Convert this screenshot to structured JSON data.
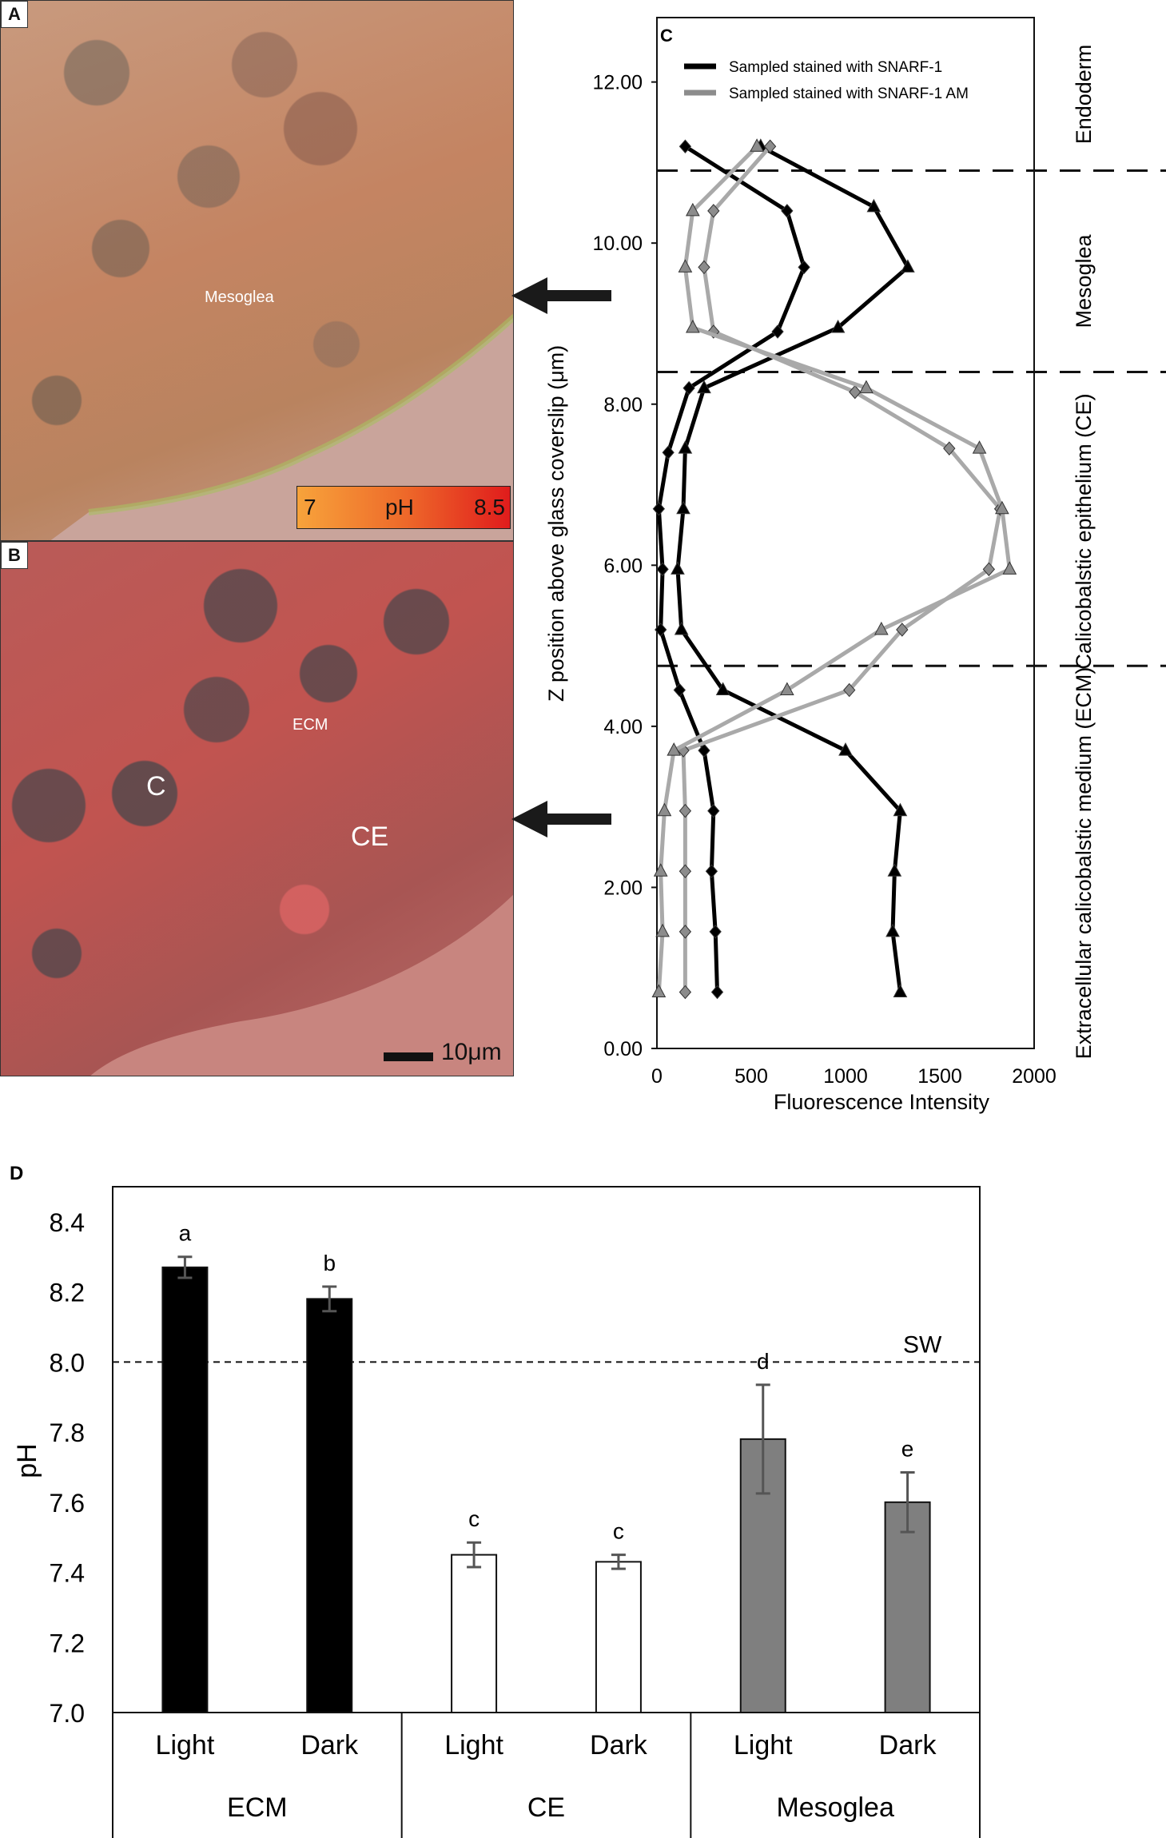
{
  "panels": {
    "a": {
      "letter": "A",
      "label": "Mesoglea"
    },
    "b": {
      "letter": "B",
      "label_ecm": "ECM",
      "label_c": "C",
      "label_ce": "CE",
      "scale_label": "10μm"
    },
    "colorbar": {
      "min": "7",
      "mid": "pH",
      "max": "8.5"
    }
  },
  "colors": {
    "black_series": "#000000",
    "gray_series": "#a9a9a9",
    "mesoglea_bar": "#7f7f7f",
    "ce_bar": "#ffffff",
    "ecm_bar": "#000000"
  },
  "chart_data": [
    {
      "panel": "C",
      "type": "line",
      "orientation": "profile",
      "xlabel": "Fluorescence Intensity",
      "ylabel": "Z position above glass coverslip (μm)",
      "xlim": [
        0,
        2000
      ],
      "ylim": [
        0,
        12.8
      ],
      "xticks": [
        "0",
        "500",
        "1000",
        "1500",
        "2000"
      ],
      "yticks": [
        "0.00",
        "2.00",
        "4.00",
        "6.00",
        "8.00",
        "10.00",
        "12.00"
      ],
      "legend": [
        "Sampled stained with SNARF-1",
        "Sampled stained with SNARF-1 AM"
      ],
      "legend_position": "top-left",
      "boundaries": [
        10.9,
        8.4,
        4.75
      ],
      "regions": [
        "Endoderm",
        "Mesoglea",
        "Calicobalstic epithelium (CE)",
        "Extracellular calicobalstic medium (ECM)"
      ],
      "series": [
        {
          "name": "Sampled stained with SNARF-1",
          "color": "black",
          "marker": "diamond",
          "points": [
            [
              150,
              11.2
            ],
            [
              690,
              10.4
            ],
            [
              780,
              9.7
            ],
            [
              640,
              8.9
            ],
            [
              170,
              8.2
            ],
            [
              60,
              7.4
            ],
            [
              10,
              6.7
            ],
            [
              30,
              5.95
            ],
            [
              20,
              5.2
            ],
            [
              120,
              4.45
            ],
            [
              250,
              3.7
            ],
            [
              300,
              2.95
            ],
            [
              290,
              2.2
            ],
            [
              310,
              1.45
            ],
            [
              320,
              0.7
            ]
          ]
        },
        {
          "name": "Sampled stained with SNARF-1",
          "color": "black",
          "marker": "triangle",
          "points": [
            [
              550,
              11.2
            ],
            [
              1150,
              10.45
            ],
            [
              1330,
              9.7
            ],
            [
              960,
              8.95
            ],
            [
              250,
              8.2
            ],
            [
              150,
              7.45
            ],
            [
              140,
              6.7
            ],
            [
              110,
              5.95
            ],
            [
              130,
              5.2
            ],
            [
              350,
              4.45
            ],
            [
              1000,
              3.7
            ],
            [
              1290,
              2.95
            ],
            [
              1260,
              2.2
            ],
            [
              1250,
              1.45
            ],
            [
              1290,
              0.7
            ]
          ]
        },
        {
          "name": "Sampled stained with SNARF-1 AM",
          "color": "gray",
          "marker": "diamond",
          "points": [
            [
              600,
              11.2
            ],
            [
              300,
              10.4
            ],
            [
              250,
              9.7
            ],
            [
              300,
              8.9
            ],
            [
              1050,
              8.15
            ],
            [
              1550,
              7.45
            ],
            [
              1820,
              6.7
            ],
            [
              1760,
              5.95
            ],
            [
              1300,
              5.2
            ],
            [
              1020,
              4.45
            ],
            [
              140,
              3.7
            ],
            [
              150,
              2.95
            ],
            [
              150,
              2.2
            ],
            [
              150,
              1.45
            ],
            [
              150,
              0.7
            ]
          ]
        },
        {
          "name": "Sampled stained with SNARF-1 AM",
          "color": "gray",
          "marker": "triangle",
          "points": [
            [
              530,
              11.2
            ],
            [
              190,
              10.4
            ],
            [
              150,
              9.7
            ],
            [
              190,
              8.95
            ],
            [
              1110,
              8.2
            ],
            [
              1710,
              7.45
            ],
            [
              1830,
              6.7
            ],
            [
              1870,
              5.95
            ],
            [
              1190,
              5.2
            ],
            [
              690,
              4.45
            ],
            [
              90,
              3.7
            ],
            [
              40,
              2.95
            ],
            [
              20,
              2.2
            ],
            [
              30,
              1.45
            ],
            [
              10,
              0.7
            ]
          ]
        }
      ]
    },
    {
      "panel": "D",
      "type": "bar",
      "ylabel": "pH",
      "ylim": [
        7.0,
        8.5
      ],
      "yticks": [
        "7.0",
        "7.2",
        "7.4",
        "7.6",
        "7.8",
        "8.0",
        "8.2",
        "8.4"
      ],
      "reference_line": {
        "value": 8.0,
        "label": "SW"
      },
      "groups": [
        "ECM",
        "CE",
        "Mesoglea"
      ],
      "categories": [
        "Light",
        "Dark",
        "Light",
        "Dark",
        "Light",
        "Dark"
      ],
      "values": [
        8.27,
        8.18,
        7.45,
        7.43,
        7.78,
        7.6
      ],
      "errors": [
        0.03,
        0.035,
        0.035,
        0.02,
        0.155,
        0.085
      ],
      "letters": [
        "a",
        "b",
        "c",
        "c",
        "d",
        "e"
      ],
      "bar_colors": [
        "#000000",
        "#000000",
        "#ffffff",
        "#ffffff",
        "#7f7f7f",
        "#7f7f7f"
      ]
    }
  ]
}
